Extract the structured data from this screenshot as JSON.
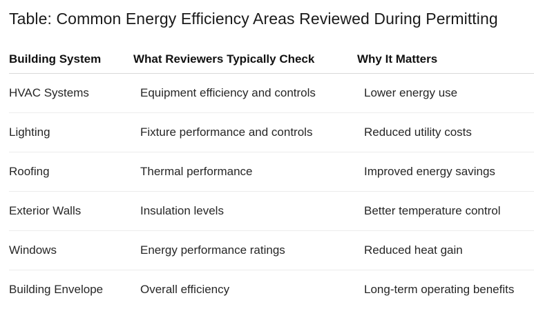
{
  "title": "Table: Common Energy Efficiency Areas Reviewed During Permitting",
  "table": {
    "headers": [
      "Building System",
      "What Reviewers Typically Check",
      "Why It Matters"
    ],
    "rows": [
      [
        "HVAC Systems",
        "Equipment efficiency and controls",
        "Lower energy use"
      ],
      [
        "Lighting",
        "Fixture performance and controls",
        "Reduced utility costs"
      ],
      [
        "Roofing",
        "Thermal performance",
        "Improved energy savings"
      ],
      [
        "Exterior Walls",
        "Insulation levels",
        "Better temperature control"
      ],
      [
        "Windows",
        "Energy performance ratings",
        "Reduced heat gain"
      ],
      [
        "Building Envelope",
        "Overall efficiency",
        "Long-term operating benefits"
      ]
    ]
  }
}
